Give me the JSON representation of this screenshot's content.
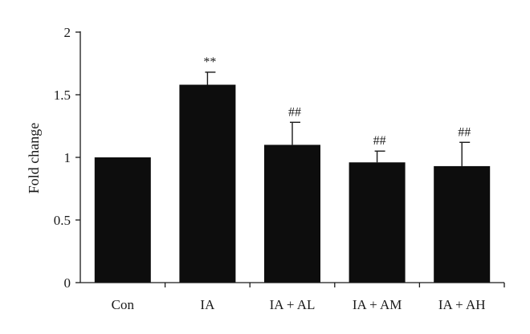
{
  "chart_data": {
    "type": "bar",
    "ylabel": "Fold change",
    "xlabel": "",
    "title": "",
    "ylim": [
      0,
      2
    ],
    "yticks": [
      "0",
      "0.5",
      "1",
      "1.5",
      "2"
    ],
    "ytick_values": [
      0,
      0.5,
      1,
      1.5,
      2
    ],
    "categories": [
      "Con",
      "IA",
      "IA + AL",
      "IA + AM",
      "IA + AH"
    ],
    "values": [
      1.0,
      1.58,
      1.1,
      0.96,
      0.93
    ],
    "errors": [
      0.0,
      0.1,
      0.18,
      0.09,
      0.19
    ],
    "annotations": [
      "",
      "**",
      "##",
      "##",
      "##"
    ],
    "bar_color": "#0d0d0d",
    "grid": false
  }
}
